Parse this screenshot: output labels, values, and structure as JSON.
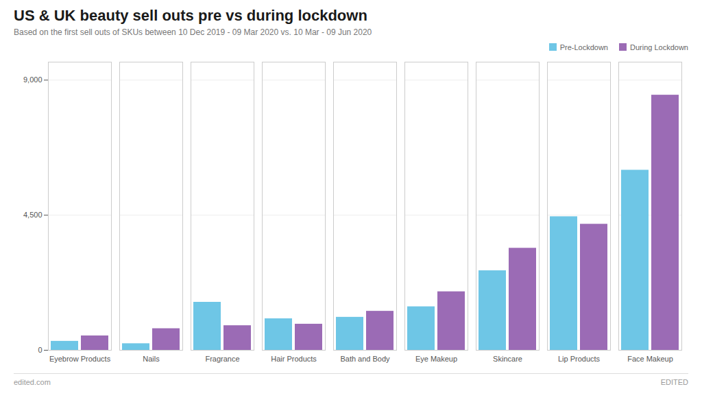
{
  "chart_data": {
    "type": "bar",
    "title": "US & UK beauty sell outs pre vs during lockdown",
    "subtitle": "Based on the first sell outs of SKUs between 10 Dec 2019 - 09 Mar 2020 vs. 10 Mar - 09 Jun 2020",
    "categories": [
      "Eyebrow Products",
      "Nails",
      "Fragrance",
      "Hair Products",
      "Bath and Body",
      "Eye Makeup",
      "Skincare",
      "Lip Products",
      "Face Makeup"
    ],
    "series": [
      {
        "name": "Pre-Lockdown",
        "color": "#6EC6E6",
        "values": [
          300,
          220,
          1600,
          1050,
          1100,
          1450,
          2650,
          4450,
          6000
        ]
      },
      {
        "name": "During Lockdown",
        "color": "#9B6BB5",
        "values": [
          480,
          720,
          820,
          870,
          1300,
          1950,
          3400,
          4200,
          8500
        ]
      }
    ],
    "ylim": [
      0,
      9600
    ],
    "yticks": [
      0,
      {
        "value": 4500,
        "label": "4,500"
      },
      {
        "value": 9000,
        "label": "9,000"
      }
    ],
    "grid": true,
    "legend": "upper right",
    "annotations": [
      "edited.com",
      "EDITED"
    ]
  }
}
